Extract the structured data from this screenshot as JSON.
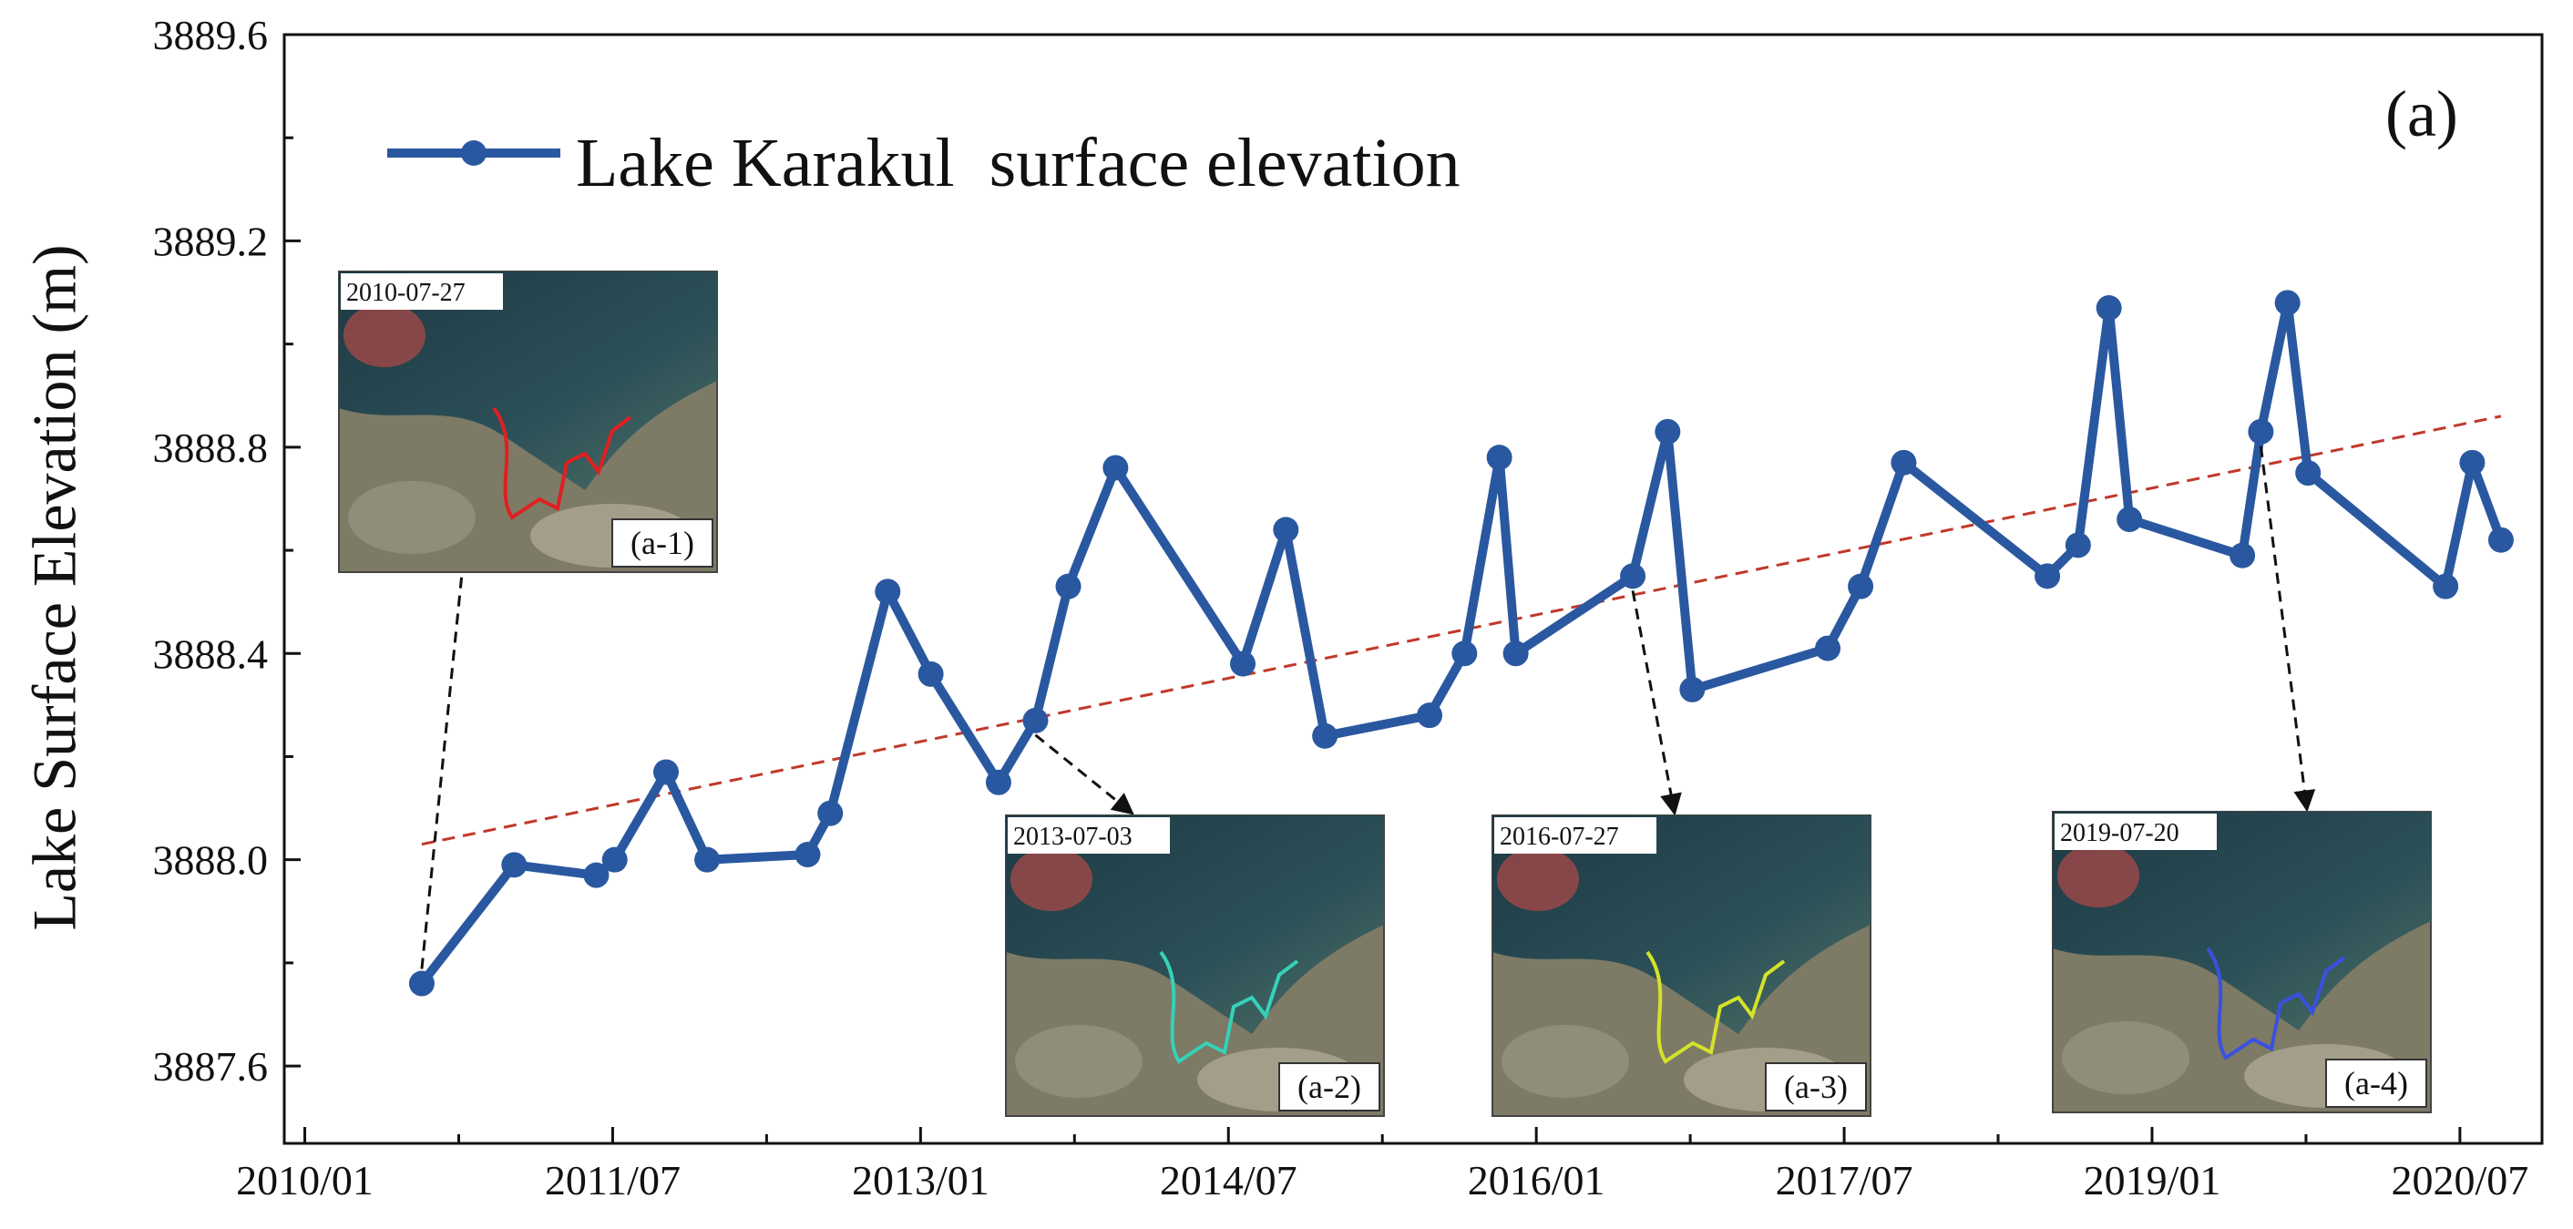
{
  "chart_data": {
    "type": "line",
    "title": "",
    "panel_label": "(a)",
    "xlabel": "",
    "ylabel": "Lake Surface Elevation (m)",
    "ylim": [
      3887.45,
      3889.6
    ],
    "yticks": [
      3887.6,
      3888.0,
      3888.4,
      3888.8,
      3889.2,
      3889.6
    ],
    "ytick_labels": [
      "3887.6",
      "3888.0",
      "3888.4",
      "3888.8",
      "3889.2",
      "3889.6"
    ],
    "xlim": [
      2009.9,
      2020.9
    ],
    "xticks": [
      2010.0,
      2011.5,
      2013.0,
      2014.5,
      2016.0,
      2017.5,
      2019.0,
      2020.5
    ],
    "xtick_labels": [
      "2010/01",
      "2011/07",
      "2013/01",
      "2014/07",
      "2016/01",
      "2017/07",
      "2019/01",
      "2020/07"
    ],
    "legend": {
      "position": "top-left",
      "entries": [
        "Lake Karakul  surface elevation"
      ]
    },
    "series": [
      {
        "name": "Lake Karakul  surface elevation",
        "color": "#2a58a0",
        "x": [
          2010.57,
          2011.02,
          2011.42,
          2011.51,
          2011.76,
          2011.96,
          2012.45,
          2012.56,
          2012.84,
          2013.05,
          2013.38,
          2013.56,
          2013.72,
          2013.95,
          2014.57,
          2014.78,
          2014.97,
          2015.48,
          2015.65,
          2015.82,
          2015.9,
          2016.47,
          2016.64,
          2016.76,
          2017.42,
          2017.58,
          2017.79,
          2018.49,
          2018.64,
          2018.79,
          2018.89,
          2019.44,
          2019.53,
          2019.66,
          2019.76,
          2020.43,
          2020.56,
          2020.7
        ],
        "y": [
          3887.76,
          3887.99,
          3887.97,
          3888.0,
          3888.17,
          3888.0,
          3888.01,
          3888.09,
          3888.52,
          3888.36,
          3888.15,
          3888.27,
          3888.53,
          3888.76,
          3888.38,
          3888.64,
          3888.24,
          3888.28,
          3888.4,
          3888.78,
          3888.4,
          3888.55,
          3888.83,
          3888.33,
          3888.41,
          3888.53,
          3888.77,
          3888.55,
          3888.61,
          3889.07,
          3888.66,
          3888.59,
          3888.83,
          3889.08,
          3888.75,
          3888.53,
          3888.77,
          3888.62
        ]
      },
      {
        "name": "Linear trend",
        "color": "#c0392b",
        "style": "dashed",
        "x": [
          2010.57,
          2020.7
        ],
        "y": [
          3888.03,
          3888.86
        ]
      }
    ],
    "annotations": [
      {
        "id": "a-1",
        "date": "2010-07-27",
        "tag": "(a-1)",
        "from_x": 2010.57,
        "from_y": 3887.76
      },
      {
        "id": "a-2",
        "date": "2013-07-03",
        "tag": "(a-2)",
        "from_x": 2013.56,
        "from_y": 3888.27
      },
      {
        "id": "a-3",
        "date": "2016-07-27",
        "tag": "(a-3)",
        "from_x": 2016.47,
        "from_y": 3888.55
      },
      {
        "id": "a-4",
        "date": "2019-07-20",
        "tag": "(a-4)",
        "from_x": 2019.53,
        "from_y": 3888.83
      }
    ]
  }
}
